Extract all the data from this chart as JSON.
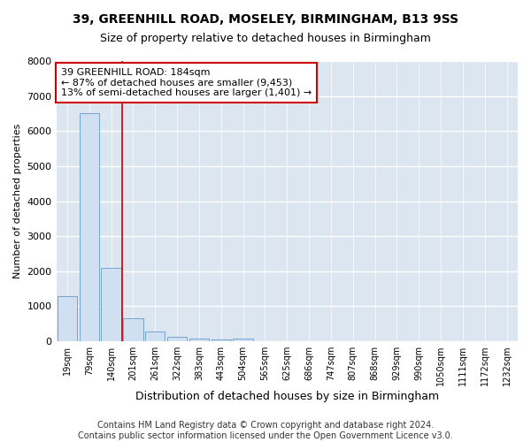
{
  "title1": "39, GREENHILL ROAD, MOSELEY, BIRMINGHAM, B13 9SS",
  "title2": "Size of property relative to detached houses in Birmingham",
  "xlabel": "Distribution of detached houses by size in Birmingham",
  "ylabel": "Number of detached properties",
  "bar_labels": [
    "19sqm",
    "79sqm",
    "140sqm",
    "201sqm",
    "261sqm",
    "322sqm",
    "383sqm",
    "443sqm",
    "504sqm",
    "565sqm",
    "625sqm",
    "686sqm",
    "747sqm",
    "807sqm",
    "868sqm",
    "929sqm",
    "990sqm",
    "1050sqm",
    "1111sqm",
    "1172sqm",
    "1232sqm"
  ],
  "bar_values": [
    1300,
    6500,
    2100,
    650,
    270,
    140,
    90,
    55,
    70,
    0,
    0,
    0,
    0,
    0,
    0,
    0,
    0,
    0,
    0,
    0,
    0
  ],
  "bar_color": "#d0e0f0",
  "bar_edge_color": "#6699cc",
  "vline_x": 2.5,
  "annotation_text": "39 GREENHILL ROAD: 184sqm\n← 87% of detached houses are smaller (9,453)\n13% of semi-detached houses are larger (1,401) →",
  "annotation_box_color": "#ffffff",
  "annotation_border_color": "#cc0000",
  "vline_color": "#cc0000",
  "ylim": [
    0,
    8000
  ],
  "yticks": [
    0,
    1000,
    2000,
    3000,
    4000,
    5000,
    6000,
    7000,
    8000
  ],
  "footer1": "Contains HM Land Registry data © Crown copyright and database right 2024.",
  "footer2": "Contains public sector information licensed under the Open Government Licence v3.0.",
  "plot_bg_color": "#dce6f1",
  "fig_bg_color": "#ffffff",
  "grid_color": "#ffffff",
  "title_fontsize": 10,
  "subtitle_fontsize": 9,
  "axis_label_fontsize": 9,
  "ylabel_fontsize": 8,
  "tick_fontsize": 7,
  "annotation_fontsize": 8,
  "footer_fontsize": 7
}
